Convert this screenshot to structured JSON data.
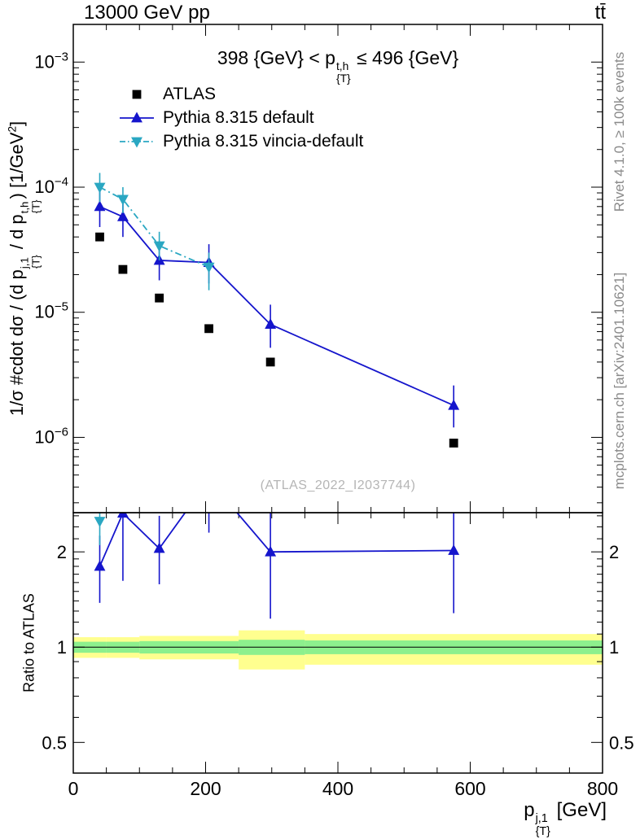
{
  "header": {
    "left": "13000 GeV pp",
    "right": "tt̄"
  },
  "side_notes": {
    "right_top": "Rivet 4.1.0, ≥ 100k events",
    "right_bottom": "mcplots.cern.ch [arXiv:2401.10621]"
  },
  "watermark": "(ATLAS_2022_I2037744)",
  "labels": {
    "title": [
      {
        "t": "398 {GeV} < p"
      },
      {
        "stack": [
          "t,h",
          "{T}"
        ]
      },
      {
        "t": " ≤ 496 {GeV}"
      }
    ],
    "xlabel": [
      {
        "t": "p"
      },
      {
        "stack": [
          "j,1",
          "{T}"
        ]
      },
      {
        "t": " [GeV]"
      }
    ],
    "ylabel": [
      {
        "t": "1/σ #cdot dσ / (d p"
      },
      {
        "stack": [
          "j,1",
          "{T}"
        ]
      },
      {
        "t": " / d p"
      },
      {
        "stack": [
          "t,h",
          "{T}"
        ]
      },
      {
        "t": ") [1/GeV"
      },
      {
        "t": "2",
        "sup": true
      },
      {
        "t": "]"
      }
    ],
    "ratio_ylabel": [
      {
        "t": "Ratio to ATLAS"
      }
    ]
  },
  "colors": {
    "atlas": "#000000",
    "pythia_default": "#1515cc",
    "pythia_vincia": "#2aa7c2",
    "band_yellow": "#ffff8f",
    "band_green": "#8df08d",
    "gray_text": "#8a8a8a",
    "watermark_gray": "#b5b5b5"
  },
  "chart_data": {
    "type": "line",
    "title": "398 {GeV} < pT^{t,h} <= 496 {GeV}",
    "xlabel": "pT^{j,1} [GeV]",
    "ylabel": "1/sigma #cdot dsigma / (d pT^{j,1} / d pT^{t,h}) [1/GeV^2]",
    "ratio_ylabel": "Ratio to ATLAS",
    "legend_position": "top-left-inside",
    "grid": false,
    "x_range": [
      0,
      800
    ],
    "x_major_ticks": [
      0,
      200,
      400,
      600,
      800
    ],
    "x_minor_step": 50,
    "main_y_scale": "log",
    "main_y_range": [
      2.5e-07,
      0.002
    ],
    "main_y_ticks": [
      0.001,
      0.0001,
      1e-05,
      1e-06
    ],
    "ratio_y_scale": "log",
    "ratio_y_range": [
      0.4,
      2.66
    ],
    "ratio_y_ticks": [
      2,
      1,
      0.5
    ],
    "ratio_y_minor_ticks": [
      0.4,
      0.6,
      0.7,
      0.8,
      0.9,
      1.1,
      1.2,
      1.3,
      1.4,
      1.5,
      1.6,
      1.7,
      1.8,
      1.9,
      2.2,
      2.4,
      2.6
    ],
    "series": [
      {
        "name": "ATLAS",
        "marker": "square",
        "color": "#000000",
        "x": [
          40,
          75,
          130,
          205,
          298,
          575
        ],
        "y": [
          4e-05,
          2.2e-05,
          1.3e-05,
          7.4e-06,
          4e-06,
          9e-07
        ]
      },
      {
        "name": "Pythia 8.315 default",
        "marker": "triangle-up",
        "line": "solid",
        "color": "#1515cc",
        "x": [
          40,
          75,
          130,
          205,
          298,
          575
        ],
        "y": [
          7e-05,
          5.8e-05,
          2.6e-05,
          2.5e-05,
          8e-06,
          1.8e-06
        ],
        "y_lo": [
          4.8e-05,
          4e-05,
          1.8e-05,
          1.7e-05,
          5.2e-06,
          1.2e-06
        ],
        "y_hi": [
          9.5e-05,
          8.2e-05,
          3.6e-05,
          3.5e-05,
          1.15e-05,
          2.6e-06
        ],
        "ratio_x": [
          40,
          75,
          130,
          205,
          298,
          575
        ],
        "ratio": [
          1.8,
          2.65,
          2.05,
          3.38,
          2.0,
          2.02
        ],
        "ratio_lo": [
          1.38,
          1.62,
          1.58,
          2.3,
          1.23,
          1.28
        ],
        "ratio_hi": [
          2.25,
          3.6,
          2.6,
          4.4,
          2.9,
          3.0
        ]
      },
      {
        "name": "Pythia 8.315 vincia-default",
        "marker": "triangle-down",
        "line": "dashdot",
        "color": "#2aa7c2",
        "x": [
          40,
          75,
          130,
          205
        ],
        "y": [
          0.0001,
          8e-05,
          3.4e-05,
          2.3e-05
        ],
        "y_lo": [
          7.6e-05,
          6.2e-05,
          2.6e-05,
          1.5e-05
        ],
        "y_hi": [
          0.00013,
          0.0001,
          4.4e-05,
          3e-05
        ],
        "ratio_x": [
          40
        ],
        "ratio": [
          2.5
        ],
        "ratio_lo": [
          2.1
        ],
        "ratio_hi": [
          3.1
        ]
      }
    ],
    "ratio_reference_line": 1.0,
    "ratio_bands": {
      "bins": [
        [
          0,
          50
        ],
        [
          50,
          100
        ],
        [
          100,
          160
        ],
        [
          160,
          250
        ],
        [
          250,
          350
        ],
        [
          350,
          800
        ]
      ],
      "yellow": [
        [
          0.925,
          1.075
        ],
        [
          0.925,
          1.075
        ],
        [
          0.915,
          1.085
        ],
        [
          0.915,
          1.085
        ],
        [
          0.85,
          1.13
        ],
        [
          0.88,
          1.1
        ]
      ],
      "green": [
        [
          0.96,
          1.04
        ],
        [
          0.96,
          1.04
        ],
        [
          0.955,
          1.045
        ],
        [
          0.955,
          1.045
        ],
        [
          0.945,
          1.055
        ],
        [
          0.95,
          1.05
        ]
      ]
    }
  }
}
